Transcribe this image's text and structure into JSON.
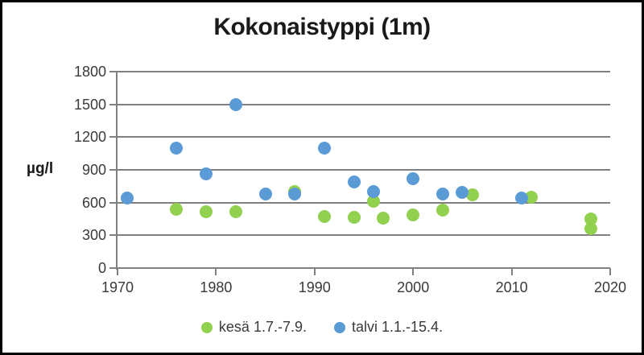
{
  "title": "Kokonaistyppi (1m)",
  "y_axis_label": "µg/l",
  "colors": {
    "summer_green": "#92D050",
    "winter_blue": "#5B9BD5",
    "gridline_gray": "#808080",
    "text_dark": "#3a3a3a"
  },
  "chart_data": {
    "type": "scatter",
    "title": "Kokonaistyppi (1m)",
    "xlabel": "",
    "ylabel": "µg/l",
    "xlim": [
      1970,
      2020
    ],
    "ylim": [
      0,
      1800
    ],
    "x_ticks": [
      1970,
      1980,
      1990,
      2000,
      2010,
      2020
    ],
    "y_ticks": [
      0,
      300,
      600,
      900,
      1200,
      1500,
      1800
    ],
    "grid": true,
    "legend_position": "bottom",
    "series": [
      {
        "name": "kesä 1.7.-7.9.",
        "color": "#92D050",
        "points": [
          [
            1976,
            540
          ],
          [
            1979,
            515
          ],
          [
            1982,
            515
          ],
          [
            1988,
            700
          ],
          [
            1991,
            470
          ],
          [
            1994,
            465
          ],
          [
            1996,
            610
          ],
          [
            1997,
            460
          ],
          [
            2000,
            490
          ],
          [
            2003,
            530
          ],
          [
            2006,
            670
          ],
          [
            2012,
            650
          ],
          [
            2018,
            450
          ],
          [
            2018,
            360
          ]
        ]
      },
      {
        "name": "talvi 1.1.-15.4.",
        "color": "#5B9BD5",
        "points": [
          [
            1971,
            640
          ],
          [
            1976,
            1100
          ],
          [
            1979,
            860
          ],
          [
            1982,
            1500
          ],
          [
            1985,
            680
          ],
          [
            1988,
            680
          ],
          [
            1991,
            1100
          ],
          [
            1994,
            790
          ],
          [
            1996,
            700
          ],
          [
            2000,
            820
          ],
          [
            2003,
            680
          ],
          [
            2005,
            690
          ],
          [
            2011,
            640
          ]
        ]
      }
    ]
  }
}
